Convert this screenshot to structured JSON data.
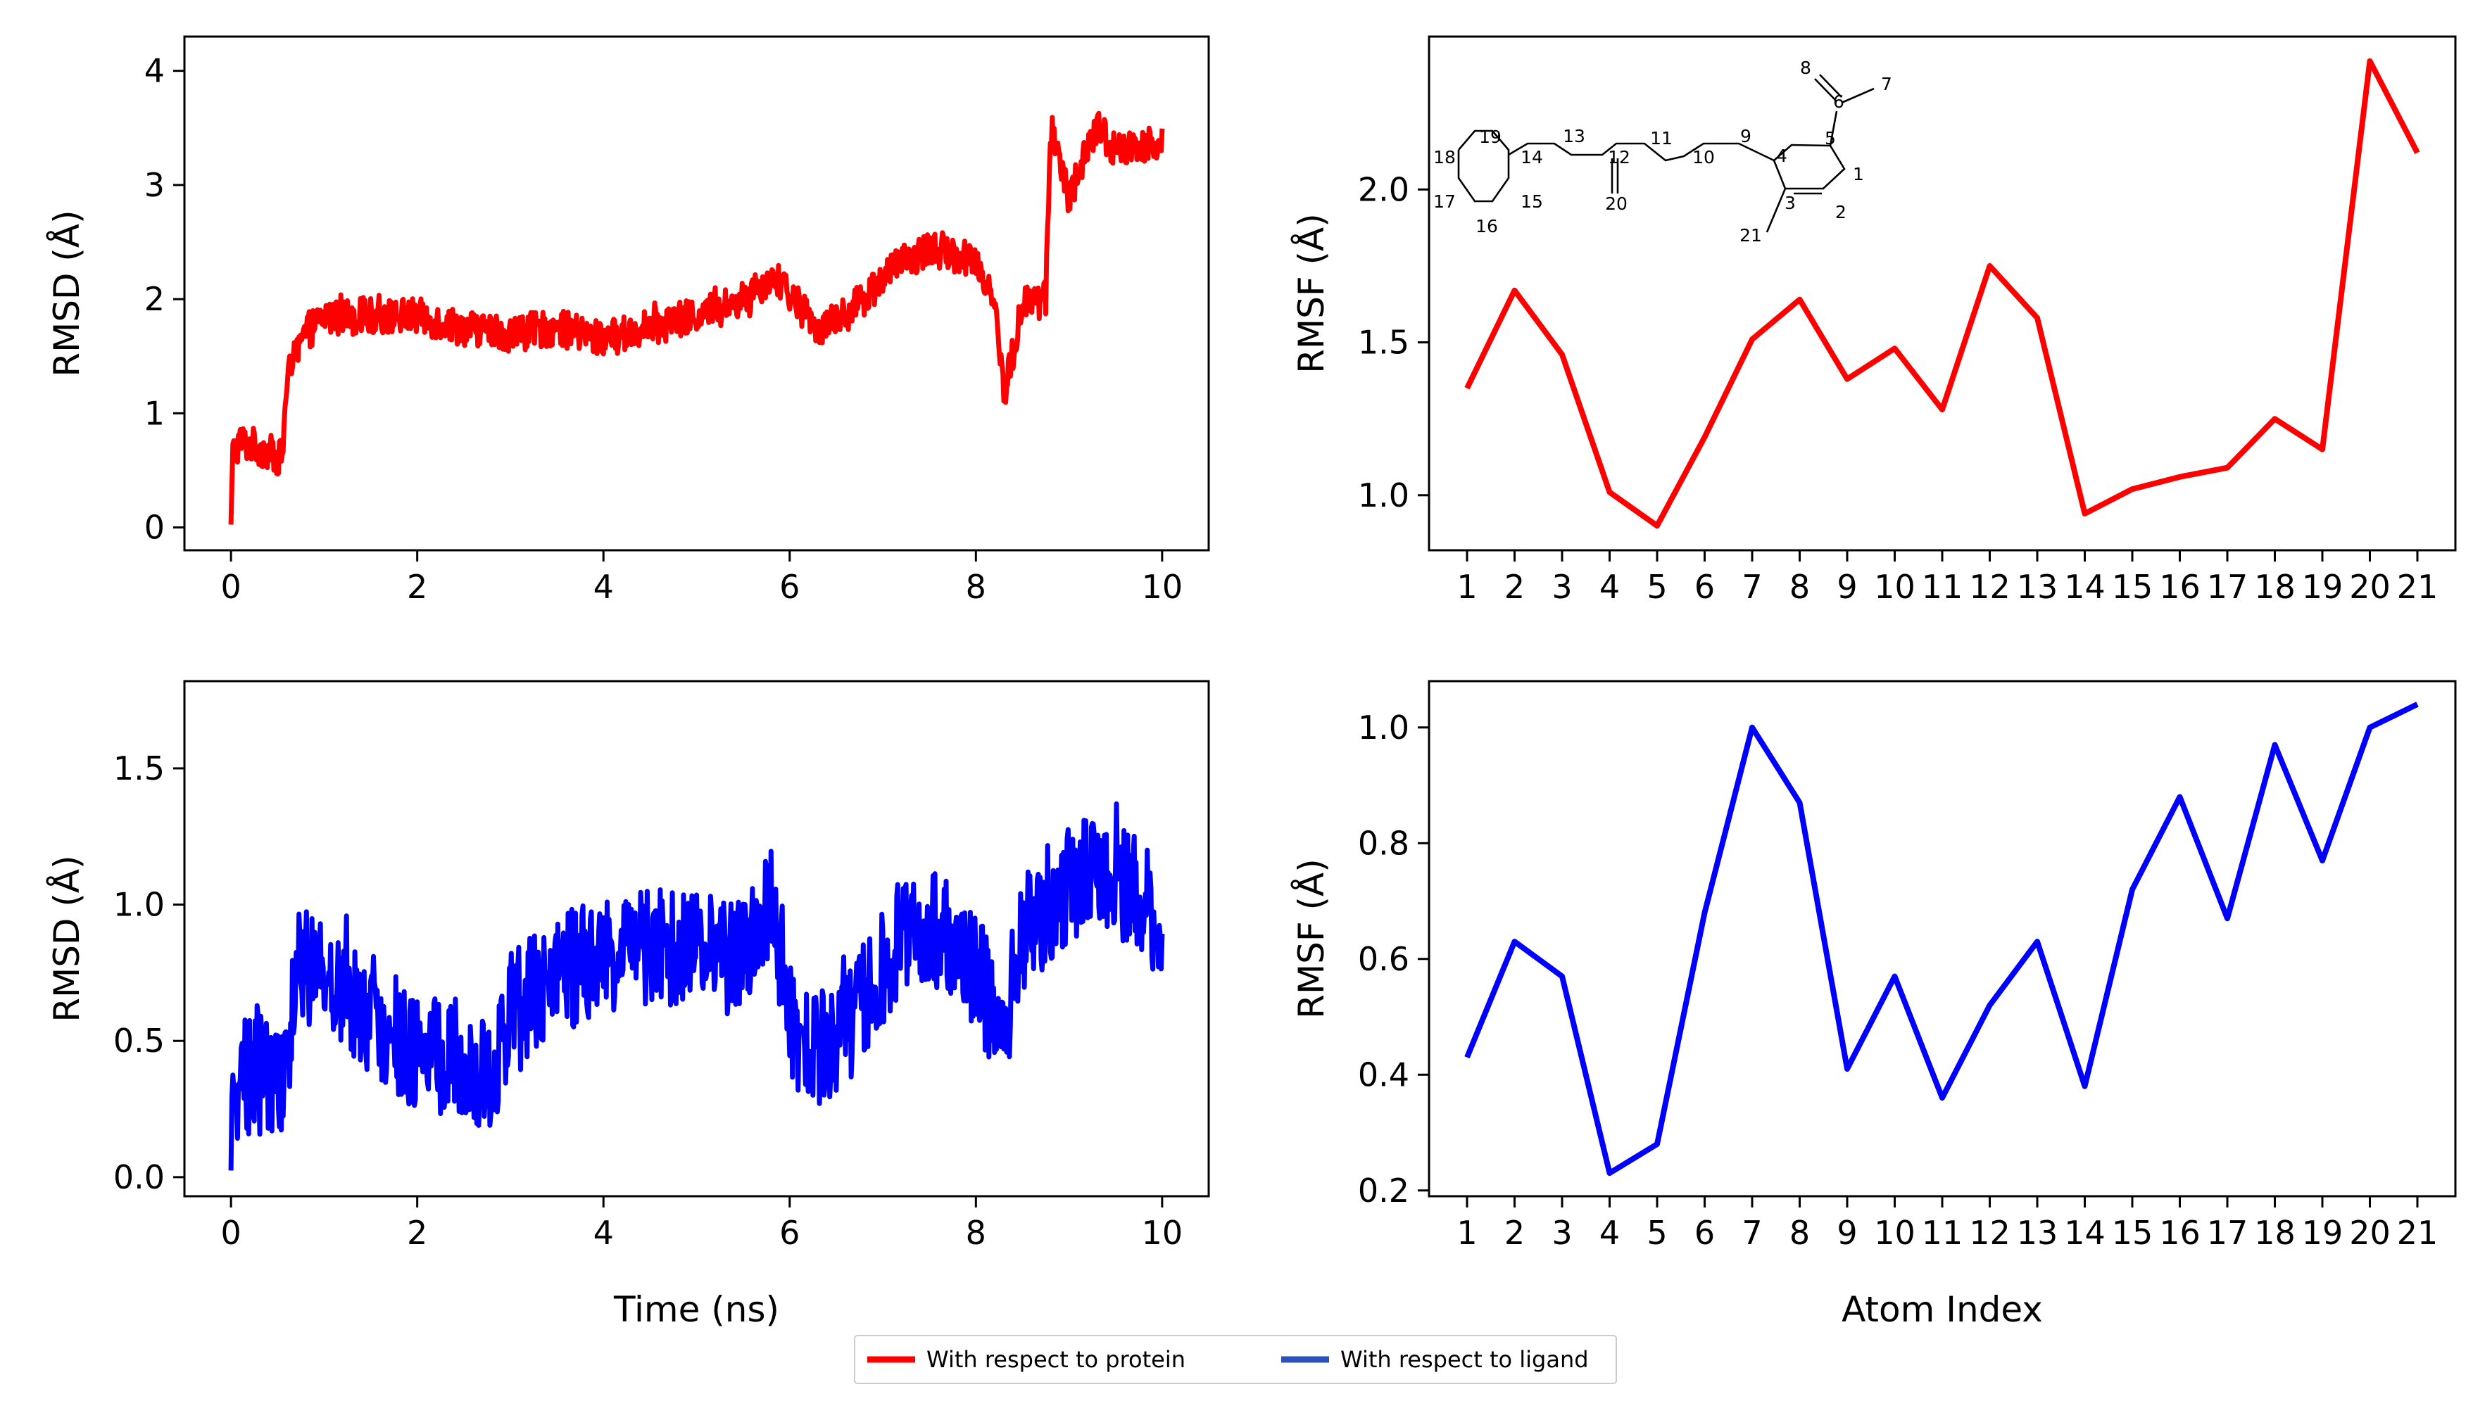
{
  "colors": {
    "protein": "#ff0000",
    "ligand": "#0000ff",
    "legend_ligand": "#2a52be",
    "frame": "#000000"
  },
  "legend": {
    "entries": [
      {
        "label": "With respect to protein",
        "color": "#ff0000"
      },
      {
        "label": "With respect to ligand",
        "color": "#2a52be"
      }
    ]
  },
  "chart_data": [
    {
      "id": "rmsd_protein",
      "type": "line",
      "title": "",
      "xlabel": "",
      "ylabel": "RMSD (Å)",
      "xlim": [
        -0.5,
        10.5
      ],
      "ylim": [
        -0.2,
        4.3
      ],
      "xticks": [
        0,
        2,
        4,
        6,
        8,
        10
      ],
      "yticks": [
        0,
        1,
        2,
        3,
        4
      ],
      "ytick_labels": [
        "0",
        "1",
        "2",
        "3",
        "4"
      ],
      "color": "#ff0000",
      "noise": 0.16,
      "series": [
        {
          "name": "With respect to protein",
          "x": [
            0,
            0.02,
            0.1,
            0.3,
            0.55,
            0.6,
            0.7,
            0.8,
            1.0,
            1.5,
            2.0,
            2.5,
            3.0,
            3.5,
            4.0,
            4.5,
            5.0,
            5.5,
            5.8,
            6.0,
            6.3,
            6.5,
            6.8,
            7.0,
            7.5,
            8.0,
            8.2,
            8.3,
            8.5,
            8.75,
            8.8,
            9.0,
            9.3,
            9.5,
            10.0
          ],
          "y": [
            0,
            0.65,
            0.75,
            0.7,
            0.6,
            1.3,
            1.5,
            1.7,
            1.85,
            1.85,
            1.85,
            1.75,
            1.7,
            1.75,
            1.65,
            1.75,
            1.85,
            2.0,
            2.2,
            2.05,
            1.75,
            1.8,
            2.0,
            2.2,
            2.45,
            2.35,
            2.0,
            1.15,
            1.95,
            2.0,
            3.5,
            2.9,
            3.5,
            3.3,
            3.4
          ]
        }
      ]
    },
    {
      "id": "rmsf_protein",
      "type": "line",
      "title": "",
      "xlabel": "",
      "ylabel": "RMSF (Å)",
      "xlim": [
        0.2,
        21.8
      ],
      "ylim": [
        0.82,
        2.5
      ],
      "xticks": [
        1,
        2,
        3,
        4,
        5,
        6,
        7,
        8,
        9,
        10,
        11,
        12,
        13,
        14,
        15,
        16,
        17,
        18,
        19,
        20,
        21
      ],
      "yticks": [
        1.0,
        1.5,
        2.0
      ],
      "ytick_labels": [
        "1.0",
        "1.5",
        "2.0"
      ],
      "color": "#ff0000",
      "noise": 0,
      "series": [
        {
          "name": "With respect to protein",
          "x": [
            1,
            2,
            3,
            4,
            5,
            6,
            7,
            8,
            9,
            10,
            11,
            12,
            13,
            14,
            15,
            16,
            17,
            18,
            19,
            20,
            21
          ],
          "y": [
            1.35,
            1.67,
            1.46,
            1.01,
            0.9,
            1.19,
            1.51,
            1.64,
            1.38,
            1.48,
            1.28,
            1.75,
            1.58,
            0.94,
            1.02,
            1.06,
            1.09,
            1.25,
            1.15,
            2.42,
            2.12
          ]
        }
      ]
    },
    {
      "id": "rmsd_ligand",
      "type": "line",
      "title": "",
      "xlabel": "Time (ns)",
      "ylabel": "RMSD (Å)",
      "xlim": [
        -0.5,
        10.5
      ],
      "ylim": [
        -0.07,
        1.82
      ],
      "xticks": [
        0,
        2,
        4,
        6,
        8,
        10
      ],
      "yticks": [
        0.0,
        0.5,
        1.0,
        1.5
      ],
      "ytick_labels": [
        "0.0",
        "0.5",
        "1.0",
        "1.5"
      ],
      "color": "#0000ff",
      "noise": 0.22,
      "series": [
        {
          "name": "With respect to ligand",
          "x": [
            0,
            0.02,
            0.3,
            0.6,
            0.7,
            1.0,
            1.5,
            2.0,
            2.5,
            2.8,
            3.0,
            3.5,
            4.0,
            4.5,
            5.0,
            5.5,
            5.8,
            6.0,
            6.2,
            6.5,
            7.0,
            7.3,
            7.6,
            8.0,
            8.3,
            8.5,
            8.9,
            9.2,
            9.5,
            10.0
          ],
          "y": [
            0,
            0.35,
            0.4,
            0.35,
            0.8,
            0.75,
            0.6,
            0.45,
            0.45,
            0.35,
            0.6,
            0.75,
            0.8,
            0.85,
            0.85,
            0.8,
            1.05,
            0.6,
            0.45,
            0.5,
            0.75,
            0.95,
            0.9,
            0.75,
            0.55,
            0.9,
            1.05,
            1.1,
            1.1,
            0.95
          ]
        }
      ]
    },
    {
      "id": "rmsf_ligand",
      "type": "line",
      "title": "",
      "xlabel": "Atom Index",
      "ylabel": "RMSF (Å)",
      "xlim": [
        0.2,
        21.8
      ],
      "ylim": [
        0.19,
        1.08
      ],
      "xticks": [
        1,
        2,
        3,
        4,
        5,
        6,
        7,
        8,
        9,
        10,
        11,
        12,
        13,
        14,
        15,
        16,
        17,
        18,
        19,
        20,
        21
      ],
      "yticks": [
        0.2,
        0.4,
        0.6,
        0.8,
        1.0
      ],
      "ytick_labels": [
        "0.2",
        "0.4",
        "0.6",
        "0.8",
        "1.0"
      ],
      "color": "#0000ff",
      "noise": 0,
      "series": [
        {
          "name": "With respect to ligand",
          "x": [
            1,
            2,
            3,
            4,
            5,
            6,
            7,
            8,
            9,
            10,
            11,
            12,
            13,
            14,
            15,
            16,
            17,
            18,
            19,
            20,
            21
          ],
          "y": [
            0.43,
            0.63,
            0.57,
            0.23,
            0.28,
            0.68,
            1.0,
            0.87,
            0.41,
            0.57,
            0.36,
            0.52,
            0.63,
            0.38,
            0.72,
            0.88,
            0.67,
            0.97,
            0.77,
            1.0,
            1.04
          ]
        }
      ]
    }
  ],
  "molecule": {
    "atom_labels": [
      {
        "t": "19",
        "color": "#000000"
      },
      {
        "t": "18",
        "color": "#000000"
      },
      {
        "t": "17",
        "color": "#000000"
      },
      {
        "t": "16",
        "color": "#000000"
      },
      {
        "t": "15",
        "color": "#000000"
      },
      {
        "t": "14",
        "color": "#000000"
      },
      {
        "t": "13",
        "color": "#0000ff"
      },
      {
        "t": "12",
        "color": "#000000"
      },
      {
        "t": "20",
        "color": "#ff0000"
      },
      {
        "t": "11",
        "color": "#ff0000"
      },
      {
        "t": "10",
        "color": "#000000"
      },
      {
        "t": "9",
        "color": "#000000"
      },
      {
        "t": "4",
        "color": "#0000ff"
      },
      {
        "t": "5",
        "color": "#000000"
      },
      {
        "t": "6",
        "color": "#0000ff"
      },
      {
        "t": "8",
        "color": "#ff0000"
      },
      {
        "t": "7",
        "color": "#ff0000"
      },
      {
        "t": "1",
        "color": "#000000"
      },
      {
        "t": "2",
        "color": "#0000ff"
      },
      {
        "t": "3",
        "color": "#000000"
      },
      {
        "t": "21",
        "color": "#000000"
      }
    ]
  }
}
